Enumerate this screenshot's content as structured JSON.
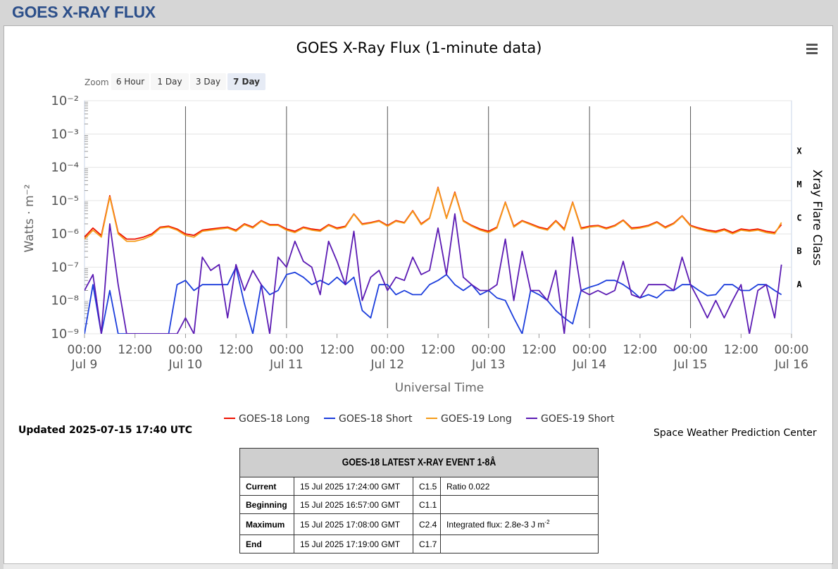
{
  "header": {
    "title": "GOES X-RAY FLUX"
  },
  "chart": {
    "menu_icon": "hamburger-menu-icon",
    "zoom": {
      "label": "Zoom",
      "buttons": [
        "6 Hour",
        "1 Day",
        "3 Day",
        "7 Day"
      ],
      "selected": "7 Day"
    },
    "flare_classes": [
      "X",
      "M",
      "C",
      "B",
      "A"
    ],
    "updated": "Updated 2025-07-15 17:40 UTC",
    "credit": "Space Weather Prediction Center"
  },
  "chart_data": {
    "type": "line",
    "title": "GOES X-Ray Flux (1-minute data)",
    "xlabel": "Universal Time",
    "ylabel": "Watts · m⁻²",
    "y2label": "Xray Flare Class",
    "yscale": "log",
    "ylim": [
      1e-09,
      0.01
    ],
    "y_ticks": [
      "10⁻²",
      "10⁻³",
      "10⁻⁴",
      "10⁻⁵",
      "10⁻⁶",
      "10⁻⁷",
      "10⁻⁸",
      "10⁻⁹"
    ],
    "x_ticks": [
      {
        "time": "00:00",
        "date": "Jul 9"
      },
      {
        "time": "12:00",
        "date": ""
      },
      {
        "time": "00:00",
        "date": "Jul 10"
      },
      {
        "time": "12:00",
        "date": ""
      },
      {
        "time": "00:00",
        "date": "Jul 11"
      },
      {
        "time": "12:00",
        "date": ""
      },
      {
        "time": "00:00",
        "date": "Jul 12"
      },
      {
        "time": "12:00",
        "date": ""
      },
      {
        "time": "00:00",
        "date": "Jul 13"
      },
      {
        "time": "12:00",
        "date": ""
      },
      {
        "time": "00:00",
        "date": "Jul 14"
      },
      {
        "time": "12:00",
        "date": ""
      },
      {
        "time": "00:00",
        "date": "Jul 15"
      },
      {
        "time": "12:00",
        "date": ""
      },
      {
        "time": "00:00",
        "date": "Jul 16"
      }
    ],
    "x_range_hours": [
      0,
      168
    ],
    "x_hours": [
      0,
      2,
      4,
      6,
      8,
      10,
      12,
      14,
      16,
      18,
      20,
      22,
      24,
      26,
      28,
      30,
      32,
      34,
      36,
      38,
      40,
      42,
      44,
      46,
      48,
      50,
      52,
      54,
      56,
      58,
      60,
      62,
      64,
      66,
      68,
      70,
      72,
      74,
      76,
      78,
      80,
      82,
      84,
      86,
      88,
      90,
      92,
      94,
      96,
      98,
      100,
      102,
      104,
      106,
      108,
      110,
      112,
      114,
      116,
      118,
      120,
      122,
      124,
      126,
      128,
      130,
      132,
      134,
      136,
      138,
      140,
      142,
      144,
      146,
      148,
      150,
      152,
      154,
      156,
      158,
      160,
      162,
      164,
      165.6
    ],
    "series": [
      {
        "name": "GOES-18 Long",
        "color": "#ee1100",
        "values": [
          8e-07,
          1.5e-06,
          9e-07,
          1.4e-05,
          1.1e-06,
          7e-07,
          7e-07,
          8e-07,
          1e-06,
          1.6e-06,
          1.7e-06,
          1.4e-06,
          1e-06,
          9e-07,
          1.3e-06,
          1.4e-06,
          1.5e-06,
          1.6e-06,
          1.3e-06,
          2e-06,
          1.6e-06,
          2.5e-06,
          1.9e-06,
          1.9e-06,
          1.4e-06,
          1.2e-06,
          1.6e-06,
          1.4e-06,
          1.3e-06,
          1.9e-06,
          1.5e-06,
          1.7e-06,
          4e-06,
          2e-06,
          2.2e-06,
          2.5e-06,
          1.8e-06,
          2.5e-06,
          2.2e-06,
          5e-06,
          2e-06,
          3e-06,
          2.5e-05,
          3e-06,
          1.8e-05,
          2.5e-06,
          1.8e-06,
          1.4e-06,
          1.2e-06,
          1.6e-06,
          9e-06,
          1.7e-06,
          2.5e-06,
          2e-06,
          1.6e-06,
          1.4e-06,
          2.5e-06,
          1.4e-06,
          9e-06,
          1.5e-06,
          1.7e-06,
          1.8e-06,
          1.5e-06,
          1.8e-06,
          2.6e-06,
          1.5e-06,
          1.6e-06,
          1.8e-06,
          2.3e-06,
          1.6e-06,
          2.1e-06,
          3.5e-06,
          1.8e-06,
          1.5e-06,
          1.3e-06,
          1.2e-06,
          1.4e-06,
          1.1e-06,
          1.4e-06,
          1.3e-06,
          1.4e-06,
          1.2e-06,
          1.1e-06,
          1.9e-06
        ]
      },
      {
        "name": "GOES-18 Short",
        "color": "#1b3ddc",
        "values": [
          1e-09,
          3e-08,
          1e-09,
          2e-08,
          1e-09,
          1e-09,
          1e-09,
          1e-09,
          1e-09,
          1e-09,
          1e-09,
          3e-08,
          4e-08,
          2e-08,
          3e-08,
          3e-08,
          3e-08,
          3e-08,
          1e-07,
          8e-09,
          1e-09,
          3e-08,
          1.5e-08,
          2e-08,
          6e-08,
          7e-08,
          5e-08,
          3e-08,
          4e-08,
          3e-08,
          5e-08,
          3e-08,
          5e-08,
          5e-09,
          3e-09,
          3e-08,
          3e-08,
          1.5e-08,
          2e-08,
          1.5e-08,
          1.5e-08,
          3e-08,
          4e-08,
          6e-08,
          3e-08,
          2e-08,
          3e-08,
          1.5e-08,
          2e-08,
          1.2e-08,
          1e-08,
          3e-09,
          1e-09,
          2e-08,
          1.5e-08,
          1e-08,
          5e-09,
          3e-09,
          2e-09,
          2e-08,
          2.5e-08,
          3e-08,
          4e-08,
          4e-08,
          3e-08,
          2e-08,
          1.2e-08,
          1.5e-08,
          1.2e-08,
          2e-08,
          2e-08,
          3e-08,
          3e-08,
          2e-08,
          1.4e-08,
          1.5e-08,
          3e-08,
          3e-08,
          2e-08,
          2e-08,
          3e-08,
          3e-08,
          2e-08,
          1.5e-08
        ]
      },
      {
        "name": "GOES-19 Long",
        "color": "#f59b18",
        "values": [
          7e-07,
          1.3e-06,
          8e-07,
          1.3e-05,
          1e-06,
          6e-07,
          6e-07,
          7e-07,
          9e-07,
          1.5e-06,
          1.6e-06,
          1.3e-06,
          9e-07,
          8e-07,
          1.2e-06,
          1.3e-06,
          1.4e-06,
          1.5e-06,
          1.2e-06,
          1.9e-06,
          1.5e-06,
          2.4e-06,
          1.8e-06,
          1.8e-06,
          1.3e-06,
          1.1e-06,
          1.5e-06,
          1.3e-06,
          1.2e-06,
          1.8e-06,
          1.4e-06,
          1.6e-06,
          3.9e-06,
          1.9e-06,
          2.1e-06,
          2.4e-06,
          1.7e-06,
          2.4e-06,
          2.1e-06,
          4.8e-06,
          1.9e-06,
          2.9e-06,
          2.4e-05,
          2.9e-06,
          1.7e-05,
          2.4e-06,
          1.7e-06,
          1.3e-06,
          1.1e-06,
          1.5e-06,
          8.7e-06,
          1.6e-06,
          2.4e-06,
          1.9e-06,
          1.5e-06,
          1.3e-06,
          2.4e-06,
          1.3e-06,
          8.7e-06,
          1.4e-06,
          1.6e-06,
          1.7e-06,
          1.4e-06,
          1.7e-06,
          2.5e-06,
          1.4e-06,
          1.5e-06,
          1.7e-06,
          2.2e-06,
          1.5e-06,
          2e-06,
          3.4e-06,
          1.7e-06,
          1.4e-06,
          1.2e-06,
          1.1e-06,
          1.3e-06,
          1e-06,
          1.3e-06,
          1.2e-06,
          1.3e-06,
          1.1e-06,
          1e-06,
          2.2e-06
        ]
      },
      {
        "name": "GOES-19 Short",
        "color": "#5b1ab3",
        "values": [
          2e-08,
          6e-08,
          1e-09,
          2e-06,
          3e-08,
          1e-09,
          1e-09,
          1e-09,
          1e-09,
          1e-09,
          1e-09,
          1e-09,
          3e-09,
          1e-09,
          2e-07,
          8e-08,
          1.2e-07,
          3e-09,
          1.2e-07,
          2e-08,
          8e-08,
          3e-08,
          1e-09,
          2e-07,
          1e-07,
          6e-07,
          1.5e-07,
          1e-07,
          1.5e-08,
          6e-07,
          1.5e-07,
          3e-08,
          1.2e-06,
          1e-08,
          5e-08,
          8e-08,
          2e-08,
          5e-08,
          4e-08,
          2e-07,
          6e-08,
          8e-08,
          1.5e-06,
          6e-08,
          4e-06,
          5e-08,
          3e-08,
          2e-08,
          2e-08,
          3e-08,
          7e-07,
          1e-08,
          3e-07,
          2e-08,
          2e-08,
          1e-08,
          8e-08,
          1e-09,
          8e-07,
          2e-08,
          1.5e-08,
          2e-08,
          1.5e-08,
          2e-08,
          1.5e-07,
          1.5e-08,
          1.2e-08,
          3e-08,
          3e-08,
          3e-08,
          2e-08,
          2e-07,
          3e-08,
          1e-08,
          3e-09,
          1e-08,
          3e-09,
          1e-08,
          3e-08,
          1e-09,
          2e-08,
          3e-08,
          3e-09,
          1.2e-07
        ]
      }
    ]
  },
  "event_table": {
    "title": "GOES-18 LATEST X-RAY EVENT 1-8Å",
    "rows": [
      {
        "label": "Current",
        "time": "15 Jul 2025 17:24:00 GMT",
        "class": "C1.5",
        "extra": "Ratio 0.022"
      },
      {
        "label": "Beginning",
        "time": "15 Jul 2025 16:57:00 GMT",
        "class": "C1.1",
        "extra": ""
      },
      {
        "label": "Maximum",
        "time": "15 Jul 2025 17:08:00 GMT",
        "class": "C2.4",
        "extra": "Integrated flux: 2.8e-3 J m",
        "extra_sup": "-2"
      },
      {
        "label": "End",
        "time": "15 Jul 2025 17:19:00 GMT",
        "class": "C1.7",
        "extra": ""
      }
    ]
  }
}
